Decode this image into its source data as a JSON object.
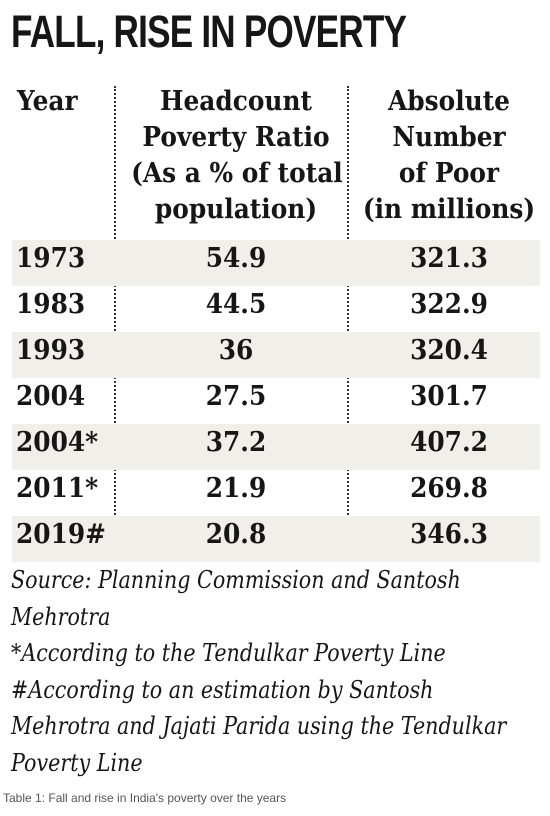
{
  "title": "FALL, RISE IN POVERTY",
  "columns": {
    "year": "Year",
    "hcr_lines": [
      "Headcount",
      "Poverty Ratio",
      "(As a % of total",
      "population)"
    ],
    "abs_lines": [
      "Absolute",
      "Number",
      "of Poor",
      "(in millions)"
    ]
  },
  "rows": [
    {
      "year": "1973",
      "hcr": "54.9",
      "abs": "321.3"
    },
    {
      "year": "1983",
      "hcr": "44.5",
      "abs": "322.9"
    },
    {
      "year": "1993",
      "hcr": "36",
      "abs": "320.4"
    },
    {
      "year": "2004",
      "hcr": "27.5",
      "abs": "301.7"
    },
    {
      "year": "2004*",
      "hcr": "37.2",
      "abs": "407.2"
    },
    {
      "year": "2011*",
      "hcr": "21.9",
      "abs": "269.8"
    },
    {
      "year": "2019#",
      "hcr": "20.8",
      "abs": "346.3"
    }
  ],
  "notes": [
    "Source: Planning Commission and Santosh",
    "Mehrotra",
    "*According to the Tendulkar Poverty Line",
    "#According to an estimation by Santosh",
    "Mehrotra and Jajati Parida using the Tendulkar",
    "Poverty Line"
  ],
  "caption": "Table 1: Fall and rise in India's poverty over the years",
  "colors": {
    "text": "#161616",
    "row_shade": "#f0efe9",
    "caption": "#555555"
  }
}
